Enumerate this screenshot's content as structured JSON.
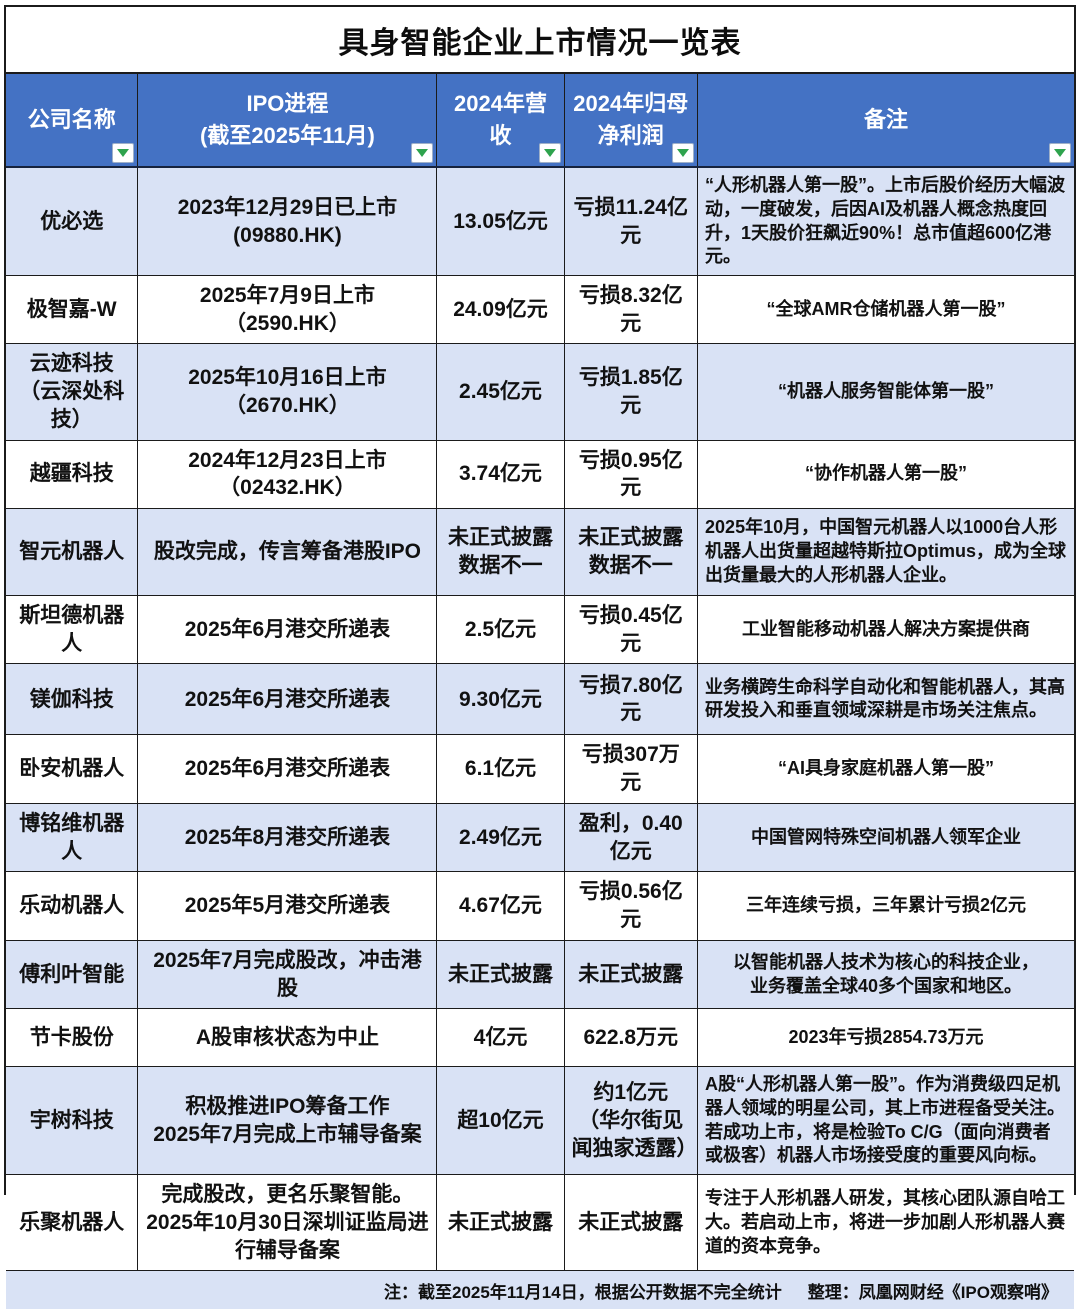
{
  "title": "具身智能企业上市情况一览表",
  "colors": {
    "header_bg": "#4472C4",
    "header_text": "#FFFFFF",
    "row_alt_bg": "#D9E2F5",
    "row_bg": "#FFFFFF",
    "border": "#1B1B1B",
    "filter_arrow_green": "#2EA34D"
  },
  "icons": {
    "filter": "filter-dropdown-icon (white box with green down triangle)"
  },
  "table": {
    "headers": [
      {
        "label": "公司名称"
      },
      {
        "label": "IPO进程\n(截至2025年11月)"
      },
      {
        "label": "2024年营收"
      },
      {
        "label": "2024年归母\n净利润"
      },
      {
        "label": "备注"
      }
    ],
    "rows": [
      {
        "company": "优必选",
        "ipo": "2023年12月29日已上市\n(09880.HK)",
        "revenue": "13.05亿元",
        "profit": "亏损11.24亿元",
        "note": "“人形机器人第一股”。上市后股价经历大幅波动，一度破发，后因AI及机器人概念热度回升，1天股价狂飙近90%！总市值超600亿港元。",
        "note_align": "left"
      },
      {
        "company": "极智嘉-W",
        "ipo": "2025年7月9日上市（2590.HK）",
        "revenue": "24.09亿元",
        "profit": "亏损8.32亿元",
        "note": "“全球AMR仓储机器人第一股”",
        "note_align": "center"
      },
      {
        "company": "云迹科技\n（云深处科技）",
        "ipo": "2025年10月16日上市（2670.HK）",
        "revenue": "2.45亿元",
        "profit": "亏损1.85亿元",
        "note": "“机器人服务智能体第一股”",
        "note_align": "center"
      },
      {
        "company": "越疆科技",
        "ipo": "2024年12月23日上市（02432.HK）",
        "revenue": "3.74亿元",
        "profit": "亏损0.95亿元",
        "note": "“协作机器人第一股”",
        "note_align": "center"
      },
      {
        "company": "智元机器人",
        "ipo": "股改完成，传言筹备港股IPO",
        "revenue": "未正式披露\n数据不一",
        "profit": "未正式披露\n数据不一",
        "note": "2025年10月，中国智元机器人以1000台人形机器人出货量超越特斯拉Optimus，成为全球出货量最大的人形机器人企业。",
        "note_align": "left"
      },
      {
        "company": "斯坦德机器人",
        "ipo": "2025年6月港交所递表",
        "revenue": "2.5亿元",
        "profit": "亏损0.45亿元",
        "note": "工业智能移动机器人解决方案提供商",
        "note_align": "center"
      },
      {
        "company": "镁伽科技",
        "ipo": "2025年6月港交所递表",
        "revenue": "9.30亿元",
        "profit": "亏损7.80亿元",
        "note": "业务横跨生命科学自动化和智能机器人，其高研发投入和垂直领域深耕是市场关注焦点。",
        "note_align": "left"
      },
      {
        "company": "卧安机器人",
        "ipo": "2025年6月港交所递表",
        "revenue": "6.1亿元",
        "profit": "亏损307万元",
        "note": "“AI具身家庭机器人第一股”",
        "note_align": "center"
      },
      {
        "company": "博铭维机器人",
        "ipo": "2025年8月港交所递表",
        "revenue": "2.49亿元",
        "profit": "盈利，0.40亿元",
        "note": "中国管网特殊空间机器人领军企业",
        "note_align": "center"
      },
      {
        "company": "乐动机器人",
        "ipo": "2025年5月港交所递表",
        "revenue": "4.67亿元",
        "profit": "亏损0.56亿元",
        "note": "三年连续亏损，三年累计亏损2亿元",
        "note_align": "center"
      },
      {
        "company": "傅利叶智能",
        "ipo": "2025年7月完成股改，冲击港股",
        "revenue": "未正式披露",
        "profit": "未正式披露",
        "note": "以智能机器人技术为核心的科技企业，\n业务覆盖全球40多个国家和地区。",
        "note_align": "center"
      },
      {
        "company": "节卡股份",
        "ipo": "A股审核状态为中止",
        "revenue": "4亿元",
        "profit": "622.8万元",
        "note": "2023年亏损2854.73万元",
        "note_align": "center"
      },
      {
        "company": "宇树科技",
        "ipo": "积极推进IPO筹备工作\n2025年7月完成上市辅导备案",
        "revenue": "超10亿元",
        "profit": "约1亿元\n（华尔街见闻独家透露）",
        "note": "A股“人形机器人第一股”。作为消费级四足机器人领域的明星公司，其上市进程备受关注。若成功上市，将是检验To C/G（面向消费者或极客）机器人市场接受度的重要风向标。",
        "note_align": "left"
      },
      {
        "company": "乐聚机器人",
        "ipo": "完成股改，更名乐聚智能。\n2025年10月30日深圳证监局进行辅导备案",
        "revenue": "未正式披露",
        "profit": "未正式披露",
        "note": "专注于人形机器人研发，其核心团队源自哈工大。若启动上市，将进一步加剧人形机器人赛道的资本竞争。",
        "note_align": "left"
      }
    ]
  },
  "footer": {
    "note": "注：截至2025年11月14日，根据公开数据不完全统计",
    "credit": "整理：凤凰网财经《IPO观察哨》"
  }
}
